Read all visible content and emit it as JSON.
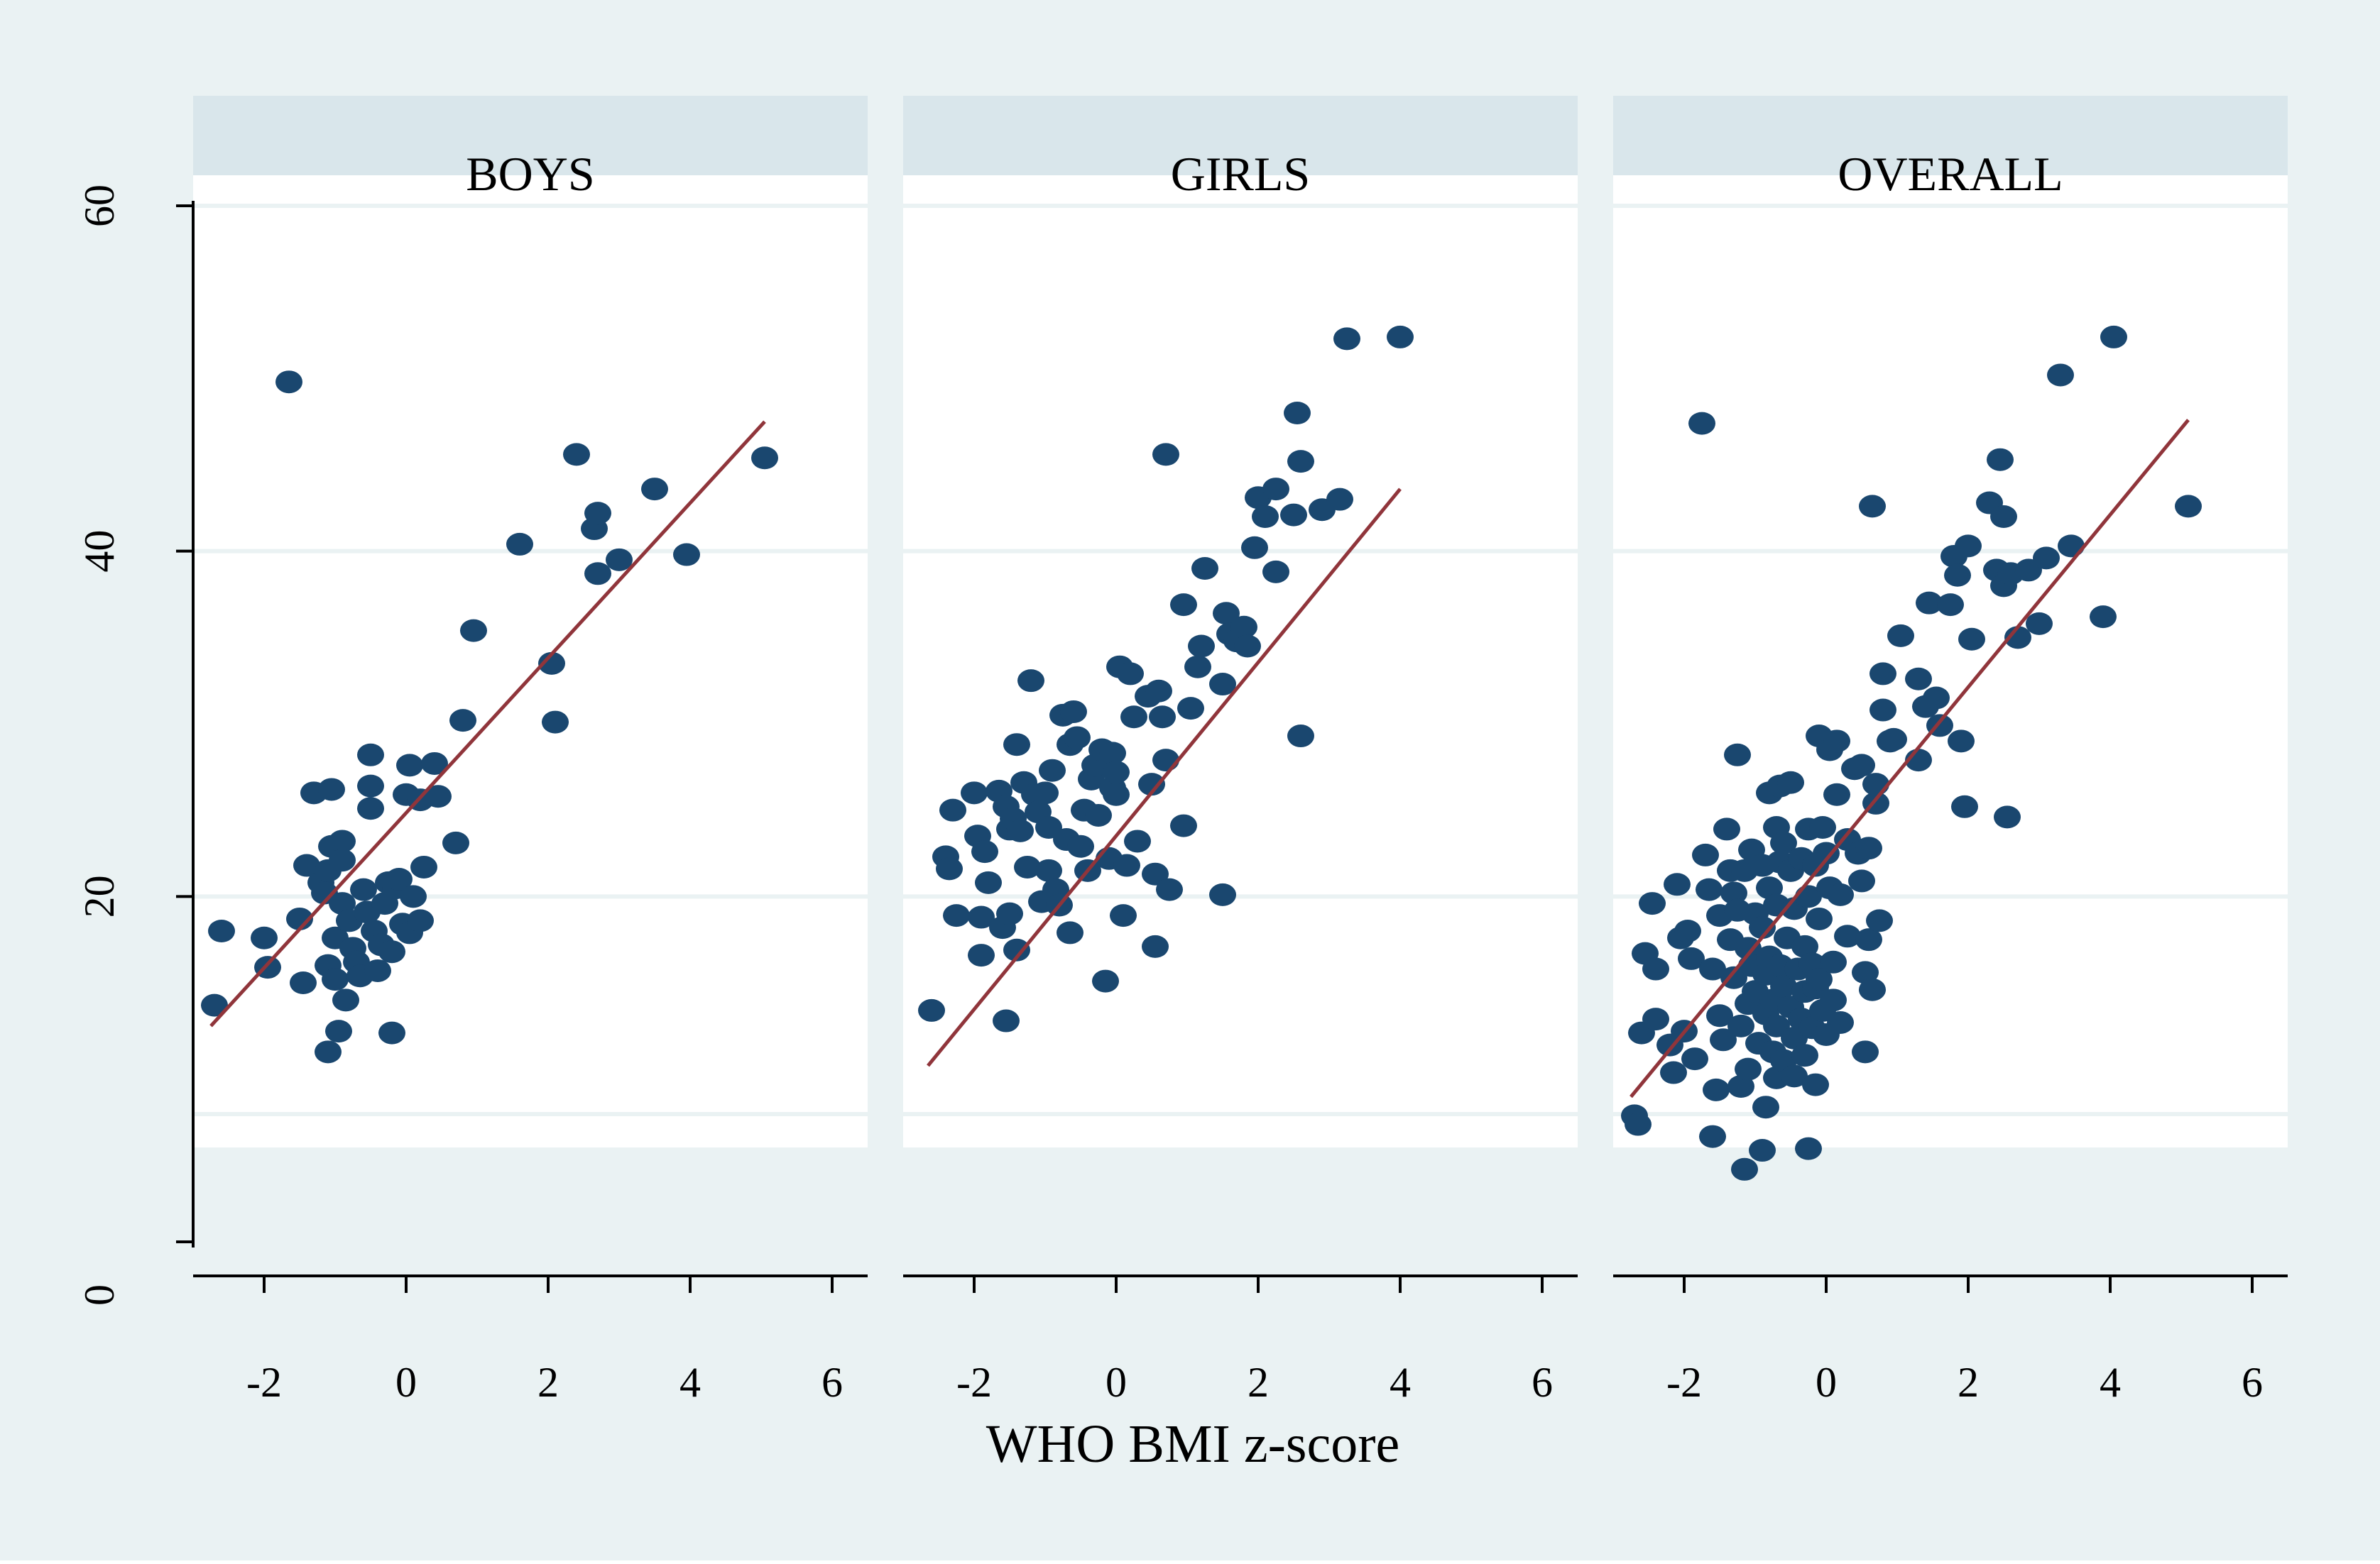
{
  "colors": {
    "outer_background": "#eaf2f3",
    "plot_background": "#ffffff",
    "strip_background": "#d9e6eb",
    "gridline": "#eaf2f3",
    "marker": "#1a476f",
    "fit_line": "#90353b",
    "axis": "#000000"
  },
  "chart_data": {
    "type": "scatter",
    "xlabel": "WHO BMI z-score",
    "ylabel": "",
    "xlim": [
      -3,
      6.5
    ],
    "ylim": [
      0,
      62
    ],
    "x_ticks": [
      -2,
      0,
      2,
      4,
      6
    ],
    "x_tick_labels": [
      "-2",
      "0",
      "2",
      "4",
      "6"
    ],
    "y_ticks": [
      0,
      20,
      40,
      60
    ],
    "y_tick_labels": [
      "0",
      "20",
      "40",
      "60"
    ],
    "grid": true,
    "panels": [
      {
        "title": "BOYS",
        "fit_line": {
          "x": [
            -2.75,
            5.05
          ],
          "y": [
            12.5,
            47.5
          ]
        },
        "points": [
          [
            -2.7,
            13.7
          ],
          [
            -2.6,
            18.0
          ],
          [
            -2.0,
            17.6
          ],
          [
            -1.95,
            15.9
          ],
          [
            -1.65,
            49.8
          ],
          [
            -1.5,
            18.7
          ],
          [
            -1.45,
            15.0
          ],
          [
            -1.4,
            21.8
          ],
          [
            -1.3,
            26.0
          ],
          [
            -1.2,
            20.8
          ],
          [
            -1.15,
            20.2
          ],
          [
            -1.1,
            21.5
          ],
          [
            -1.1,
            16.0
          ],
          [
            -1.05,
            26.2
          ],
          [
            -1.05,
            22.9
          ],
          [
            -1.0,
            17.6
          ],
          [
            -1.0,
            15.2
          ],
          [
            -1.1,
            11.0
          ],
          [
            -0.95,
            12.2
          ],
          [
            -0.9,
            23.2
          ],
          [
            -0.9,
            22.1
          ],
          [
            -0.9,
            19.6
          ],
          [
            -0.85,
            14.0
          ],
          [
            -0.8,
            18.6
          ],
          [
            -0.75,
            17.0
          ],
          [
            -0.7,
            16.2
          ],
          [
            -0.65,
            15.4
          ],
          [
            -0.6,
            20.4
          ],
          [
            -0.55,
            19.1
          ],
          [
            -0.5,
            28.2
          ],
          [
            -0.5,
            26.4
          ],
          [
            -0.5,
            25.1
          ],
          [
            -0.45,
            18.0
          ],
          [
            -0.4,
            15.7
          ],
          [
            -0.35,
            17.2
          ],
          [
            -0.3,
            19.6
          ],
          [
            -0.25,
            20.8
          ],
          [
            -0.2,
            12.1
          ],
          [
            -0.2,
            16.8
          ],
          [
            -0.15,
            20.5
          ],
          [
            -0.1,
            21.0
          ],
          [
            -0.05,
            18.4
          ],
          [
            0.0,
            25.9
          ],
          [
            0.05,
            27.6
          ],
          [
            0.05,
            17.9
          ],
          [
            0.1,
            20.0
          ],
          [
            0.2,
            25.6
          ],
          [
            0.2,
            18.6
          ],
          [
            0.25,
            21.7
          ],
          [
            0.4,
            27.7
          ],
          [
            0.45,
            25.8
          ],
          [
            0.7,
            23.1
          ],
          [
            0.8,
            30.2
          ],
          [
            0.95,
            35.4
          ],
          [
            1.6,
            40.4
          ],
          [
            2.05,
            33.5
          ],
          [
            2.1,
            30.1
          ],
          [
            2.4,
            45.6
          ],
          [
            2.65,
            41.3
          ],
          [
            2.7,
            42.2
          ],
          [
            2.7,
            38.7
          ],
          [
            3.0,
            39.5
          ],
          [
            3.5,
            43.6
          ],
          [
            3.95,
            39.8
          ],
          [
            5.05,
            45.4
          ]
        ]
      },
      {
        "title": "GIRLS",
        "fit_line": {
          "x": [
            -2.65,
            4.0
          ],
          "y": [
            10.2,
            43.6
          ]
        },
        "points": [
          [
            -2.6,
            13.4
          ],
          [
            -2.4,
            22.3
          ],
          [
            -2.35,
            21.6
          ],
          [
            -2.3,
            25.0
          ],
          [
            -2.25,
            18.9
          ],
          [
            -2.0,
            26.0
          ],
          [
            -1.95,
            23.5
          ],
          [
            -1.9,
            18.8
          ],
          [
            -1.9,
            16.6
          ],
          [
            -1.85,
            22.6
          ],
          [
            -1.8,
            20.8
          ],
          [
            -1.65,
            26.1
          ],
          [
            -1.6,
            18.2
          ],
          [
            -1.55,
            12.8
          ],
          [
            -1.55,
            25.2
          ],
          [
            -1.5,
            23.9
          ],
          [
            -1.5,
            19.0
          ],
          [
            -1.45,
            24.5
          ],
          [
            -1.4,
            28.8
          ],
          [
            -1.4,
            16.9
          ],
          [
            -1.35,
            23.8
          ],
          [
            -1.3,
            26.6
          ],
          [
            -1.25,
            21.7
          ],
          [
            -1.2,
            32.5
          ],
          [
            -1.15,
            25.9
          ],
          [
            -1.1,
            24.9
          ],
          [
            -1.05,
            19.7
          ],
          [
            -1.0,
            26.0
          ],
          [
            -0.95,
            21.5
          ],
          [
            -0.95,
            24.0
          ],
          [
            -0.9,
            27.3
          ],
          [
            -0.85,
            20.4
          ],
          [
            -0.8,
            19.5
          ],
          [
            -0.75,
            30.5
          ],
          [
            -0.7,
            23.3
          ],
          [
            -0.65,
            28.8
          ],
          [
            -0.65,
            17.9
          ],
          [
            -0.6,
            30.7
          ],
          [
            -0.55,
            29.2
          ],
          [
            -0.5,
            22.9
          ],
          [
            -0.45,
            25.0
          ],
          [
            -0.4,
            21.5
          ],
          [
            -0.35,
            26.8
          ],
          [
            -0.3,
            27.6
          ],
          [
            -0.25,
            24.7
          ],
          [
            -0.2,
            28.5
          ],
          [
            -0.15,
            15.1
          ],
          [
            -0.1,
            22.2
          ],
          [
            -0.05,
            28.3
          ],
          [
            -0.05,
            26.3
          ],
          [
            0.0,
            27.2
          ],
          [
            0.0,
            25.9
          ],
          [
            0.05,
            33.3
          ],
          [
            0.1,
            18.9
          ],
          [
            0.15,
            21.8
          ],
          [
            0.2,
            32.9
          ],
          [
            0.25,
            30.4
          ],
          [
            0.3,
            23.2
          ],
          [
            0.45,
            31.6
          ],
          [
            0.5,
            26.5
          ],
          [
            0.55,
            21.3
          ],
          [
            0.55,
            17.1
          ],
          [
            0.6,
            31.9
          ],
          [
            0.65,
            30.4
          ],
          [
            0.7,
            27.9
          ],
          [
            0.7,
            45.6
          ],
          [
            0.75,
            20.4
          ],
          [
            0.95,
            36.9
          ],
          [
            0.95,
            24.1
          ],
          [
            1.05,
            30.9
          ],
          [
            1.15,
            33.3
          ],
          [
            1.2,
            34.5
          ],
          [
            1.25,
            39.0
          ],
          [
            1.5,
            32.3
          ],
          [
            1.5,
            20.1
          ],
          [
            1.55,
            36.4
          ],
          [
            1.6,
            35.2
          ],
          [
            1.7,
            34.8
          ],
          [
            1.8,
            35.6
          ],
          [
            1.85,
            34.5
          ],
          [
            1.95,
            40.2
          ],
          [
            2.0,
            43.1
          ],
          [
            2.1,
            42.0
          ],
          [
            2.25,
            38.8
          ],
          [
            2.25,
            43.6
          ],
          [
            2.5,
            42.1
          ],
          [
            2.55,
            48.0
          ],
          [
            2.6,
            45.2
          ],
          [
            2.6,
            29.3
          ],
          [
            2.9,
            42.4
          ],
          [
            3.15,
            43.0
          ],
          [
            3.25,
            52.3
          ],
          [
            4.0,
            52.4
          ]
        ]
      },
      {
        "title": "OVERALL",
        "fit_line": {
          "x": [
            -2.75,
            5.1
          ],
          "y": [
            8.4,
            47.6
          ]
        },
        "points": [
          [
            -2.7,
            7.3
          ],
          [
            -2.65,
            6.8
          ],
          [
            -2.6,
            12.1
          ],
          [
            -2.55,
            16.7
          ],
          [
            -2.45,
            19.6
          ],
          [
            -2.4,
            15.8
          ],
          [
            -2.4,
            12.9
          ],
          [
            -2.2,
            11.4
          ],
          [
            -2.15,
            9.8
          ],
          [
            -2.1,
            20.7
          ],
          [
            -2.05,
            17.6
          ],
          [
            -2.0,
            12.2
          ],
          [
            -1.95,
            18.0
          ],
          [
            -1.9,
            16.4
          ],
          [
            -1.85,
            10.6
          ],
          [
            -1.75,
            47.4
          ],
          [
            -1.7,
            22.4
          ],
          [
            -1.65,
            20.4
          ],
          [
            -1.6,
            15.8
          ],
          [
            -1.6,
            6.1
          ],
          [
            -1.55,
            8.8
          ],
          [
            -1.5,
            18.9
          ],
          [
            -1.5,
            13.1
          ],
          [
            -1.45,
            11.7
          ],
          [
            -1.4,
            23.9
          ],
          [
            -1.35,
            21.5
          ],
          [
            -1.35,
            17.5
          ],
          [
            -1.3,
            20.2
          ],
          [
            -1.3,
            15.3
          ],
          [
            -1.25,
            28.2
          ],
          [
            -1.25,
            19.2
          ],
          [
            -1.2,
            12.5
          ],
          [
            -1.2,
            9.0
          ],
          [
            -1.15,
            21.5
          ],
          [
            -1.15,
            4.2
          ],
          [
            -1.1,
            17.0
          ],
          [
            -1.1,
            13.8
          ],
          [
            -1.1,
            10.0
          ],
          [
            -1.05,
            22.7
          ],
          [
            -1.05,
            16.0
          ],
          [
            -1.0,
            19.0
          ],
          [
            -1.0,
            14.5
          ],
          [
            -0.95,
            11.5
          ],
          [
            -0.9,
            21.8
          ],
          [
            -0.9,
            18.2
          ],
          [
            -0.9,
            5.3
          ],
          [
            -0.85,
            15.5
          ],
          [
            -0.85,
            13.2
          ],
          [
            -0.85,
            7.8
          ],
          [
            -0.8,
            26.0
          ],
          [
            -0.8,
            20.5
          ],
          [
            -0.8,
            16.5
          ],
          [
            -0.75,
            14.0
          ],
          [
            -0.75,
            11.0
          ],
          [
            -0.7,
            24.0
          ],
          [
            -0.7,
            19.5
          ],
          [
            -0.7,
            12.5
          ],
          [
            -0.7,
            9.5
          ],
          [
            -0.65,
            26.4
          ],
          [
            -0.65,
            22.0
          ],
          [
            -0.65,
            16.0
          ],
          [
            -0.6,
            23.1
          ],
          [
            -0.6,
            14.8
          ],
          [
            -0.6,
            10.5
          ],
          [
            -0.55,
            17.6
          ],
          [
            -0.5,
            26.6
          ],
          [
            -0.5,
            21.5
          ],
          [
            -0.5,
            13.6
          ],
          [
            -0.45,
            19.3
          ],
          [
            -0.45,
            11.8
          ],
          [
            -0.45,
            9.6
          ],
          [
            -0.4,
            15.8
          ],
          [
            -0.35,
            22.2
          ],
          [
            -0.35,
            12.9
          ],
          [
            -0.3,
            17.1
          ],
          [
            -0.3,
            14.5
          ],
          [
            -0.3,
            10.8
          ],
          [
            -0.25,
            23.9
          ],
          [
            -0.25,
            20.0
          ],
          [
            -0.25,
            5.4
          ],
          [
            -0.2,
            16.1
          ],
          [
            -0.2,
            12.4
          ],
          [
            -0.15,
            21.8
          ],
          [
            -0.15,
            14.7
          ],
          [
            -0.15,
            9.1
          ],
          [
            -0.1,
            29.3
          ],
          [
            -0.1,
            18.7
          ],
          [
            -0.1,
            15.2
          ],
          [
            -0.05,
            24.0
          ],
          [
            -0.05,
            13.4
          ],
          [
            0.0,
            22.5
          ],
          [
            0.0,
            12.0
          ],
          [
            0.05,
            28.5
          ],
          [
            0.05,
            20.5
          ],
          [
            0.1,
            16.2
          ],
          [
            0.1,
            14.0
          ],
          [
            0.15,
            29.0
          ],
          [
            0.15,
            25.9
          ],
          [
            0.2,
            20.1
          ],
          [
            0.2,
            12.7
          ],
          [
            0.3,
            23.3
          ],
          [
            0.3,
            17.7
          ],
          [
            0.4,
            27.4
          ],
          [
            0.45,
            22.5
          ],
          [
            0.5,
            27.6
          ],
          [
            0.5,
            20.9
          ],
          [
            0.55,
            15.6
          ],
          [
            0.55,
            11.0
          ],
          [
            0.6,
            22.8
          ],
          [
            0.6,
            17.5
          ],
          [
            0.65,
            42.6
          ],
          [
            0.65,
            14.6
          ],
          [
            0.7,
            25.4
          ],
          [
            0.7,
            26.5
          ],
          [
            0.75,
            18.6
          ],
          [
            0.8,
            32.9
          ],
          [
            0.8,
            30.8
          ],
          [
            0.9,
            29.0
          ],
          [
            0.95,
            29.1
          ],
          [
            1.05,
            35.1
          ],
          [
            1.3,
            27.9
          ],
          [
            1.3,
            32.6
          ],
          [
            1.4,
            31.0
          ],
          [
            1.45,
            37.0
          ],
          [
            1.55,
            31.5
          ],
          [
            1.6,
            29.9
          ],
          [
            1.75,
            36.9
          ],
          [
            1.8,
            39.7
          ],
          [
            1.85,
            38.6
          ],
          [
            1.9,
            29.0
          ],
          [
            1.95,
            25.2
          ],
          [
            2.0,
            40.3
          ],
          [
            2.05,
            34.9
          ],
          [
            2.3,
            42.8
          ],
          [
            2.4,
            38.9
          ],
          [
            2.45,
            45.3
          ],
          [
            2.5,
            42.0
          ],
          [
            2.5,
            38.0
          ],
          [
            2.55,
            24.6
          ],
          [
            2.6,
            38.7
          ],
          [
            2.7,
            35.0
          ],
          [
            2.85,
            38.9
          ],
          [
            3.0,
            35.8
          ],
          [
            3.1,
            39.6
          ],
          [
            3.3,
            50.2
          ],
          [
            3.45,
            40.3
          ],
          [
            3.9,
            36.2
          ],
          [
            4.05,
            52.4
          ],
          [
            5.1,
            42.6
          ]
        ]
      }
    ]
  }
}
